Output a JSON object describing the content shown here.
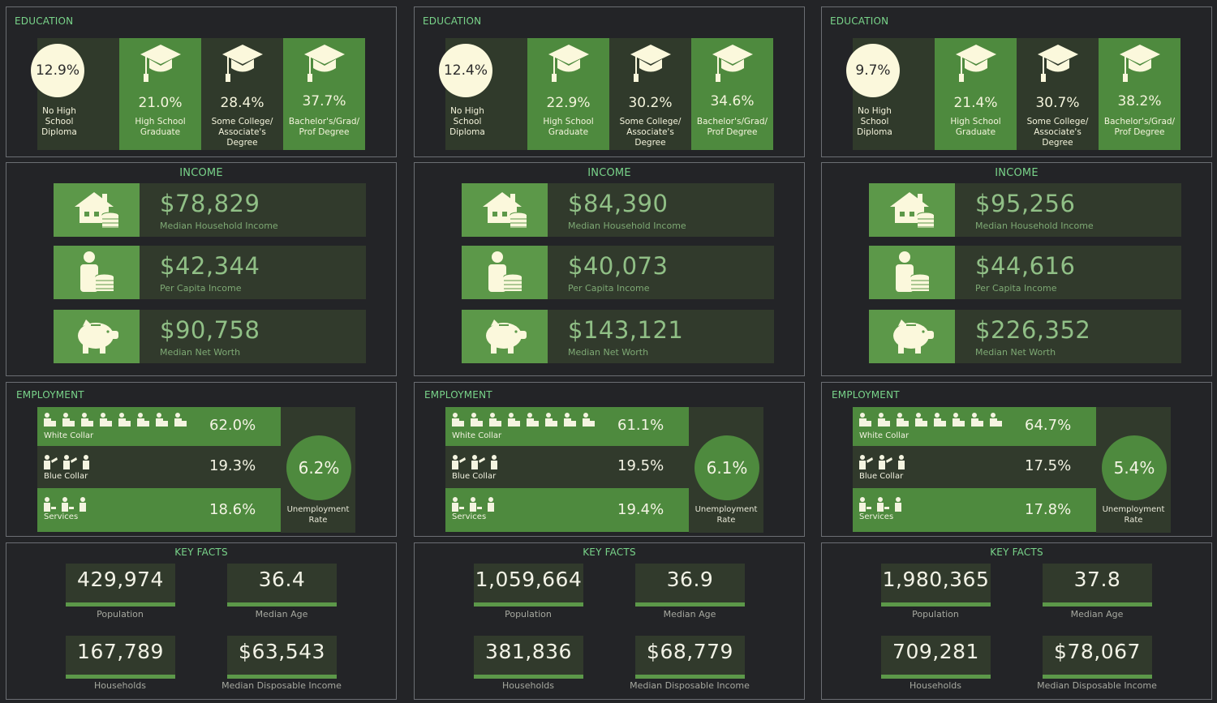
{
  "columns": [
    {
      "education": {
        "title": "EDUCATION",
        "no_hs": {
          "value": "12.9%",
          "label1": "No High",
          "label2": "School",
          "label3": "Diploma"
        },
        "hs": {
          "value": "21.0%",
          "label1": "High School",
          "label2": "Graduate"
        },
        "some_college": {
          "value": "28.4%",
          "label1": "Some College/",
          "label2": "Associate's",
          "label3": "Degree"
        },
        "bachelors": {
          "value": "37.7%",
          "label1": "Bachelor's/Grad/",
          "label2": "Prof Degree"
        }
      },
      "income": {
        "title": "INCOME",
        "rows": [
          {
            "value": "$78,829",
            "label": "Median Household Income"
          },
          {
            "value": "$42,344",
            "label": "Per Capita Income"
          },
          {
            "value": "$90,758",
            "label": "Median Net Worth"
          }
        ]
      },
      "employment": {
        "title": "EMPLOYMENT",
        "white_collar": {
          "label": "White Collar",
          "value": "62.0%"
        },
        "blue_collar": {
          "label": "Blue Collar",
          "value": "19.3%"
        },
        "services": {
          "label": "Services",
          "value": "18.6%"
        },
        "unemployment": {
          "value": "6.2%",
          "label1": "Unemployment",
          "label2": "Rate"
        }
      },
      "key_facts": {
        "title": "KEY FACTS",
        "population": {
          "value": "429,974",
          "label": "Population"
        },
        "median_age": {
          "value": "36.4",
          "label": "Median Age"
        },
        "households": {
          "value": "167,789",
          "label": "Households"
        },
        "disposable": {
          "value": "$63,543",
          "label": "Median Disposable Income"
        }
      }
    },
    {
      "education": {
        "title": "EDUCATION",
        "no_hs": {
          "value": "12.4%",
          "label1": "No High",
          "label2": "School",
          "label3": "Diploma"
        },
        "hs": {
          "value": "22.9%",
          "label1": "High School",
          "label2": "Graduate"
        },
        "some_college": {
          "value": "30.2%",
          "label1": "Some College/",
          "label2": "Associate's",
          "label3": "Degree"
        },
        "bachelors": {
          "value": "34.6%",
          "label1": "Bachelor's/Grad/",
          "label2": "Prof Degree"
        }
      },
      "income": {
        "title": "INCOME",
        "rows": [
          {
            "value": "$84,390",
            "label": "Median Household Income"
          },
          {
            "value": "$40,073",
            "label": "Per Capita Income"
          },
          {
            "value": "$143,121",
            "label": "Median Net Worth"
          }
        ]
      },
      "employment": {
        "title": "EMPLOYMENT",
        "white_collar": {
          "label": "White Collar",
          "value": "61.1%"
        },
        "blue_collar": {
          "label": "Blue Collar",
          "value": "19.5%"
        },
        "services": {
          "label": "Services",
          "value": "19.4%"
        },
        "unemployment": {
          "value": "6.1%",
          "label1": "Unemployment",
          "label2": "Rate"
        }
      },
      "key_facts": {
        "title": "KEY FACTS",
        "population": {
          "value": "1,059,664",
          "label": "Population"
        },
        "median_age": {
          "value": "36.9",
          "label": "Median Age"
        },
        "households": {
          "value": "381,836",
          "label": "Households"
        },
        "disposable": {
          "value": "$68,779",
          "label": "Median Disposable Income"
        }
      }
    },
    {
      "education": {
        "title": "EDUCATION",
        "no_hs": {
          "value": "9.7%",
          "label1": "No High",
          "label2": "School",
          "label3": "Diploma"
        },
        "hs": {
          "value": "21.4%",
          "label1": "High School",
          "label2": "Graduate"
        },
        "some_college": {
          "value": "30.7%",
          "label1": "Some College/",
          "label2": "Associate's",
          "label3": "Degree"
        },
        "bachelors": {
          "value": "38.2%",
          "label1": "Bachelor's/Grad/",
          "label2": "Prof Degree"
        }
      },
      "income": {
        "title": "INCOME",
        "rows": [
          {
            "value": "$95,256",
            "label": "Median Household Income"
          },
          {
            "value": "$44,616",
            "label": "Per Capita Income"
          },
          {
            "value": "$226,352",
            "label": "Median Net Worth"
          }
        ]
      },
      "employment": {
        "title": "EMPLOYMENT",
        "white_collar": {
          "label": "White Collar",
          "value": "64.7%"
        },
        "blue_collar": {
          "label": "Blue Collar",
          "value": "17.5%"
        },
        "services": {
          "label": "Services",
          "value": "17.8%"
        },
        "unemployment": {
          "value": "5.4%",
          "label1": "Unemployment",
          "label2": "Rate"
        }
      },
      "key_facts": {
        "title": "KEY FACTS",
        "population": {
          "value": "1,980,365",
          "label": "Population"
        },
        "median_age": {
          "value": "37.8",
          "label": "Median Age"
        },
        "households": {
          "value": "709,281",
          "label": "Households"
        },
        "disposable": {
          "value": "$78,067",
          "label": "Median Disposable Income"
        }
      }
    }
  ],
  "icons": {
    "education": "graduation-cap-icon",
    "income": [
      "house-coins-icon",
      "person-coins-icon",
      "piggy-bank-icon"
    ],
    "employment": [
      "white-collar-worker-icon",
      "blue-collar-worker-icon",
      "services-worker-icon"
    ]
  },
  "colors": {
    "background": "#232427",
    "panel_border": "#6b6e73",
    "accent_green": "#4e8a3e",
    "dark_green": "#313a2c",
    "title_green": "#79d48a",
    "cream": "#fbf8dc"
  }
}
